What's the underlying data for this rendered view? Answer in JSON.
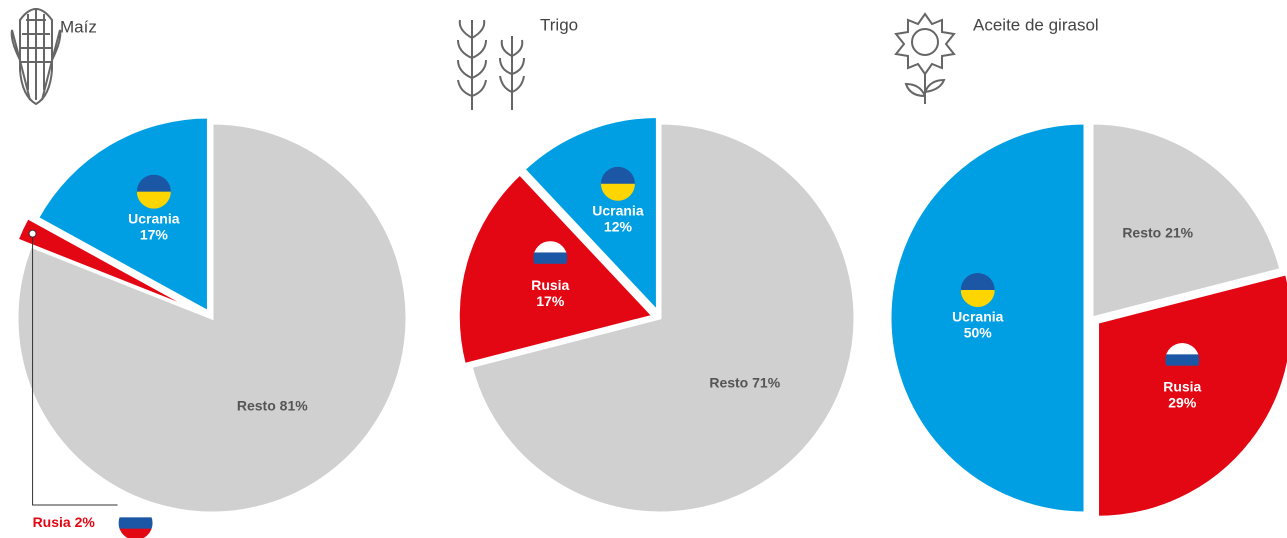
{
  "chart_data": [
    {
      "type": "pie",
      "title": "Maíz",
      "categories": [
        "Resto",
        "Rusia",
        "Ucrania"
      ],
      "values": [
        81,
        2,
        17
      ],
      "value_labels": [
        "81%",
        "2%",
        "17%"
      ],
      "colors": [
        "#d0d0d0",
        "#e30613",
        "#009fe3"
      ]
    },
    {
      "type": "pie",
      "title": "Trigo",
      "categories": [
        "Resto",
        "Rusia",
        "Ucrania"
      ],
      "values": [
        71,
        17,
        12
      ],
      "value_labels": [
        "71%",
        "17%",
        "12%"
      ],
      "colors": [
        "#d0d0d0",
        "#e30613",
        "#009fe3"
      ]
    },
    {
      "type": "pie",
      "title": "Aceite de girasol",
      "categories": [
        "Resto",
        "Rusia",
        "Ucrania"
      ],
      "values": [
        21,
        29,
        50
      ],
      "value_labels": [
        "21%",
        "29%",
        "50%"
      ],
      "colors": [
        "#d0d0d0",
        "#e30613",
        "#009fe3"
      ]
    }
  ]
}
